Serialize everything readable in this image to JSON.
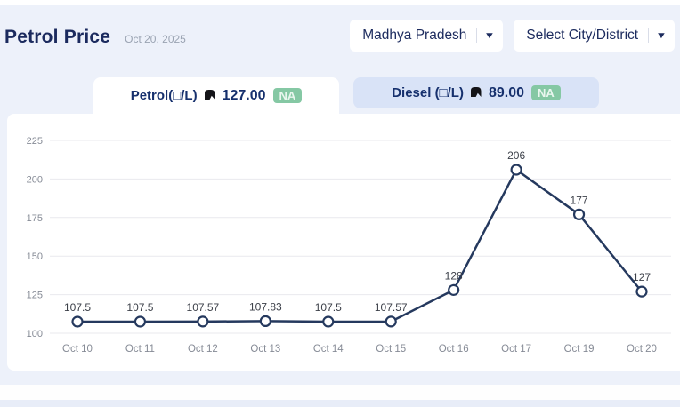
{
  "header": {
    "title": "Petrol Price",
    "date": "Oct 20, 2025"
  },
  "filters": {
    "state_value": "Madhya Pradesh",
    "city_placeholder": "Select City/District",
    "caret": "▼"
  },
  "tabs": {
    "petrol": {
      "label": "Petrol(□/L)",
      "price": "127.00",
      "badge": "NA",
      "active": true
    },
    "diesel": {
      "label": "Diesel (□/L)",
      "price": "89.00",
      "badge": "NA",
      "active": false
    }
  },
  "colors": {
    "page_bg": "#edf1fa",
    "card_bg": "#ffffff",
    "navy_text": "#1b2a5e",
    "diesel_tab_bg": "#d9e3f7",
    "badge_bg": "#85c8a4",
    "badge_text": "#e9f6ee",
    "line": "#25395e",
    "point_fill": "#ffffff",
    "grid": "#e9e9ee",
    "tick_text": "#868b96",
    "point_label_text": "#3b3f48"
  },
  "chart_data": {
    "type": "line",
    "title": "",
    "xlabel": "",
    "ylabel": "",
    "categories": [
      "Oct 10",
      "Oct 11",
      "Oct 12",
      "Oct 13",
      "Oct 14",
      "Oct 15",
      "Oct 16",
      "Oct 17",
      "Oct 19",
      "Oct 20"
    ],
    "values": [
      107.5,
      107.5,
      107.57,
      107.83,
      107.5,
      107.57,
      128,
      206,
      177,
      127
    ],
    "point_labels": [
      "107.5",
      "107.5",
      "107.57",
      "107.83",
      "107.5",
      "107.57",
      "128",
      "206",
      "177",
      "127"
    ],
    "ylim": [
      100,
      225
    ],
    "yticks": [
      100,
      125,
      150,
      175,
      200,
      225
    ],
    "grid": true,
    "legend": "none"
  }
}
